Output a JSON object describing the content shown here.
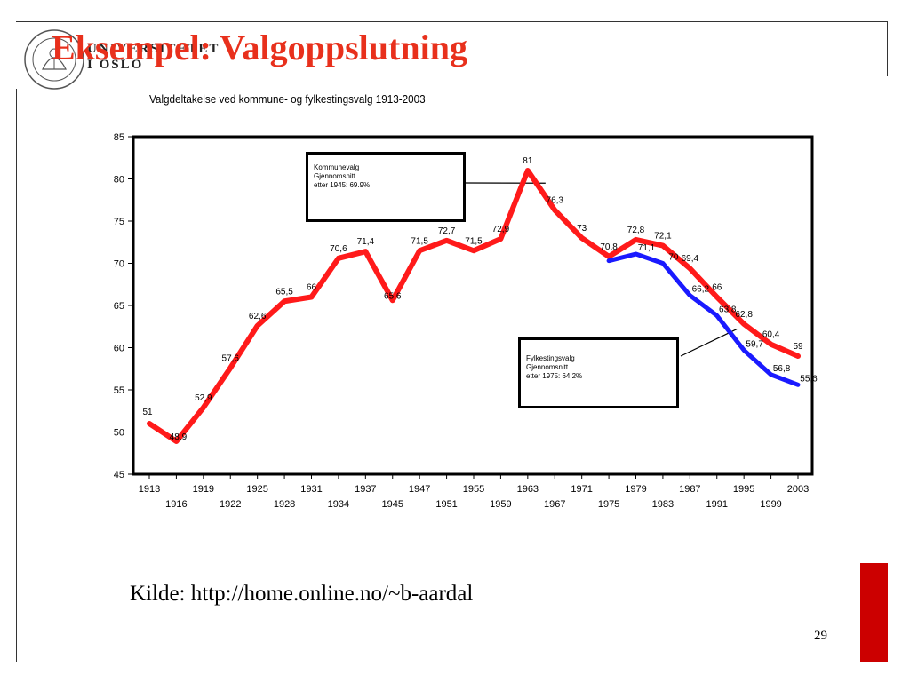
{
  "slide": {
    "title": "Eksempel: Valgoppslutning",
    "logo": {
      "line1": "UNIVERSITETET",
      "line2": "I OSLO",
      "seal_text": "UNIVERSITAS OSLOENSIS"
    },
    "source": "Kilde: http://home.online.no/~b-aardal",
    "page_number": "29",
    "colors": {
      "title": "#e8301c",
      "accent_bar": "#cc0000",
      "kommune_series": "#ff1a1a",
      "fylke_series": "#1a1aff"
    }
  },
  "chart_data": {
    "type": "line",
    "title": "Valgdeltakelse ved kommune- og fylkestingsvalg 1913-2003",
    "xlabel": "",
    "ylabel": "",
    "ylim": [
      45,
      85
    ],
    "yticks": [
      45,
      50,
      55,
      60,
      65,
      70,
      75,
      80,
      85
    ],
    "grid": false,
    "legend": "none",
    "x": [
      1913,
      1916,
      1919,
      1922,
      1925,
      1928,
      1931,
      1934,
      1937,
      1945,
      1947,
      1951,
      1955,
      1959,
      1963,
      1967,
      1971,
      1975,
      1979,
      1983,
      1987,
      1991,
      1995,
      1999,
      2003
    ],
    "series": [
      {
        "color": "#ff1a1a",
        "x": [
          1913,
          1916,
          1919,
          1922,
          1925,
          1928,
          1931,
          1934,
          1937,
          1945,
          1947,
          1951,
          1955,
          1959,
          1963,
          1967,
          1971,
          1975,
          1979,
          1983,
          1987,
          1991,
          1995,
          1999,
          2003
        ],
        "values": [
          51,
          48.9,
          52.9,
          57.6,
          62.6,
          65.5,
          66,
          70.6,
          71.4,
          65.6,
          71.5,
          72.7,
          71.5,
          72.9,
          81,
          76.3,
          73,
          70.8,
          72.8,
          72.1,
          69.4,
          66,
          62.8,
          60.4,
          59
        ],
        "labels": [
          "51",
          "48,9",
          "52,9",
          "57,6",
          "62,6",
          "65,5",
          "66",
          "70,6",
          "71,4",
          "65,6",
          "71,5",
          "72,7",
          "71,5",
          "72,9",
          "81",
          "76,3",
          "73",
          "70,8",
          "72,8",
          "72,1",
          "69,4",
          "66",
          "62,8",
          "60,4",
          "59"
        ]
      },
      {
        "color": "#1a1aff",
        "x": [
          1975,
          1979,
          1983,
          1987,
          1991,
          1995,
          1999,
          2003
        ],
        "values": [
          70.3,
          71.1,
          70,
          66.2,
          63.8,
          59.7,
          56.8,
          55.6
        ],
        "labels": [
          "",
          "71,1",
          "70",
          "66,2",
          "63,8",
          "59,7",
          "56,8",
          "55,6"
        ]
      }
    ],
    "annotations": [
      {
        "lines": [
          "Kommunevalg",
          "Gjennomsnitt",
          "etter 1945: 69.9%"
        ],
        "points_to": 1965
      },
      {
        "lines": [
          "Fylkestingsvalg",
          "Gjennomsnitt",
          "etter 1975: 64.2%"
        ],
        "points_to": 1994
      }
    ]
  }
}
